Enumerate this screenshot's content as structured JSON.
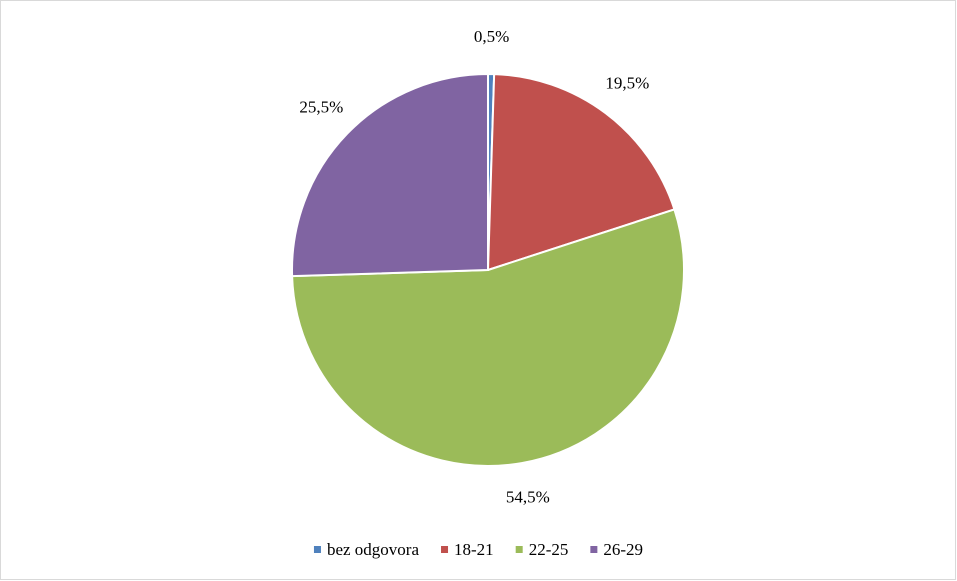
{
  "chart_data": {
    "type": "pie",
    "categories": [
      "bez odgovora",
      "18-21",
      "22-25",
      "26-29"
    ],
    "values": [
      0.5,
      19.5,
      54.5,
      25.5
    ],
    "value_labels": [
      "0,5%",
      "19,5%",
      "54,5%",
      "25,5%"
    ],
    "colors": [
      "#4f81bd",
      "#c0504d",
      "#9bbb59",
      "#8064a2"
    ],
    "legend": "bottom"
  }
}
